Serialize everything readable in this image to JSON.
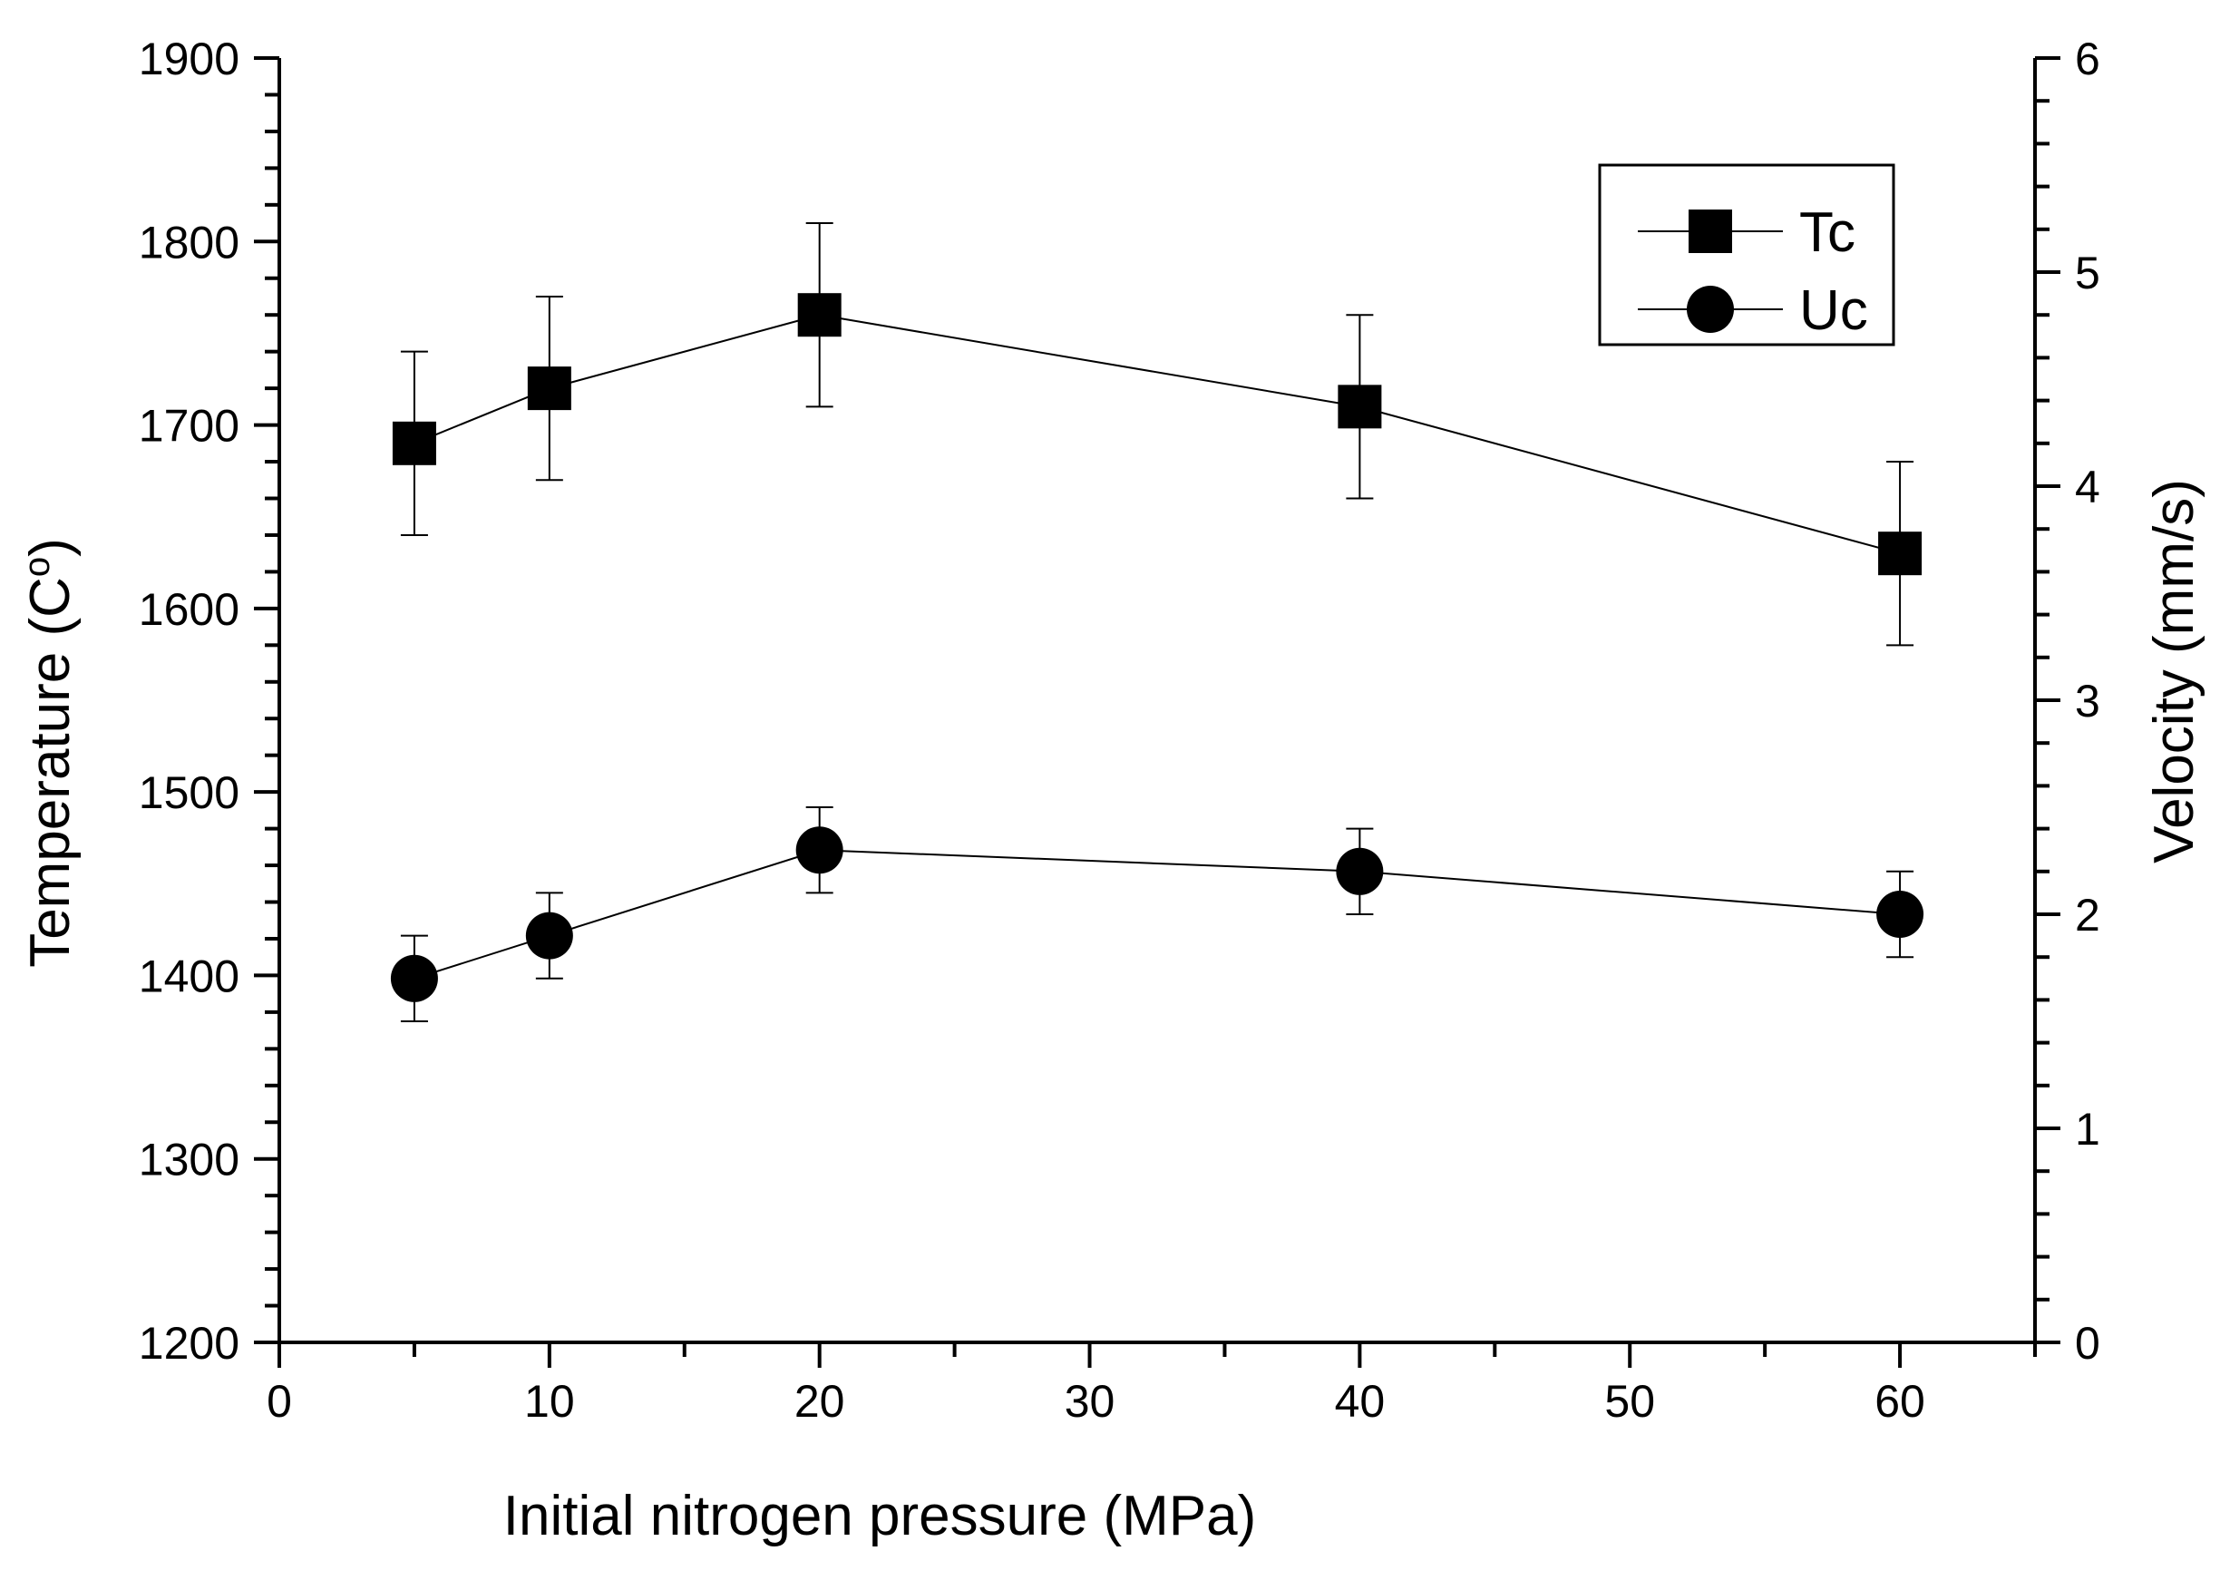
{
  "chart_data": {
    "type": "line",
    "title": "",
    "xlabel": "Initial nitrogen pressure (MPa)",
    "ylabel_left": "Temperature (C°)",
    "ylabel_left_base": "Temperature (C",
    "ylabel_left_sup": "o",
    "ylabel_left_end": ")",
    "ylabel_right": "Velocity (mm/s)",
    "xlim": [
      0,
      65
    ],
    "ylim_left": [
      1200,
      1900
    ],
    "ylim_right": [
      0,
      6
    ],
    "x_ticks": [
      0,
      10,
      20,
      30,
      40,
      50,
      60
    ],
    "x_tick_labels": [
      "0",
      "10",
      "20",
      "30",
      "40",
      "50",
      "60"
    ],
    "y_left_ticks": [
      1200,
      1300,
      1400,
      1500,
      1600,
      1700,
      1800,
      1900
    ],
    "y_left_tick_labels": [
      "1200",
      "1300",
      "1400",
      "1500",
      "1600",
      "1700",
      "1800",
      "1900"
    ],
    "y_right_ticks": [
      0,
      1,
      2,
      3,
      4,
      5,
      6
    ],
    "y_right_tick_labels": [
      "0",
      "1",
      "2",
      "3",
      "4",
      "5",
      "6"
    ],
    "grid": false,
    "legend_position": "top-right",
    "series": [
      {
        "name": "Tc",
        "axis": "left",
        "marker": "square",
        "x": [
          5,
          10,
          20,
          40,
          60
        ],
        "values": [
          1690,
          1720,
          1760,
          1710,
          1630
        ],
        "error": [
          50,
          50,
          50,
          50,
          50
        ]
      },
      {
        "name": "Uc",
        "axis": "right",
        "marker": "circle",
        "x": [
          5,
          10,
          20,
          40,
          60
        ],
        "values": [
          1.7,
          1.9,
          2.3,
          2.2,
          2.0
        ],
        "error": [
          0.2,
          0.2,
          0.2,
          0.2,
          0.2
        ]
      }
    ],
    "colors": {
      "line": "#000000",
      "marker": "#000000",
      "background": "#ffffff"
    }
  }
}
